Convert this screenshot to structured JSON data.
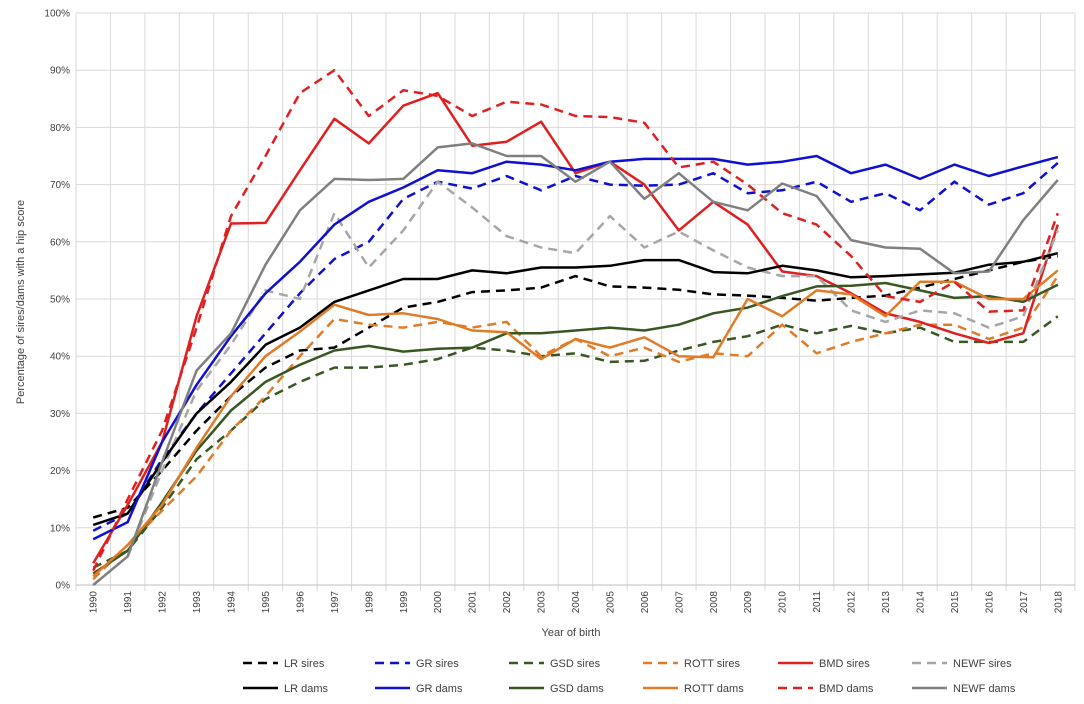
{
  "chart_data": {
    "type": "line",
    "title": "",
    "xlabel": "Year of birth",
    "ylabel": "Percentage of sires/dams with a hip score",
    "ylim": [
      0,
      100
    ],
    "y_ticks": [
      "0%",
      "10%",
      "20%",
      "30%",
      "40%",
      "50%",
      "60%",
      "70%",
      "80%",
      "90%",
      "100%"
    ],
    "x": [
      "1990",
      "1991",
      "1992",
      "1993",
      "1994",
      "1995",
      "1996",
      "1997",
      "1998",
      "1999",
      "2000",
      "2001",
      "2002",
      "2003",
      "2004",
      "2005",
      "2006",
      "2007",
      "2008",
      "2009",
      "2010",
      "2011",
      "2012",
      "2013",
      "2014",
      "2015",
      "2016",
      "2017",
      "2018"
    ],
    "grid": true,
    "legend_position": "bottom",
    "series": [
      {
        "name": "LR sires",
        "color": "#000000",
        "dash": true,
        "values": [
          11.8,
          13.5,
          20,
          27,
          33,
          38,
          41,
          41.5,
          45,
          48.5,
          49.5,
          51.2,
          51.5,
          52,
          54,
          52.2,
          52,
          51.6,
          50.8,
          50.6,
          50.2,
          49.7,
          50.2,
          50.6,
          52,
          53.5,
          55,
          56.5,
          57.5
        ]
      },
      {
        "name": "GR sires",
        "color": "#1010d0",
        "dash": true,
        "values": [
          9.5,
          12.5,
          22,
          30,
          37,
          44,
          51,
          57,
          60,
          67.5,
          70.5,
          69.3,
          71.5,
          69,
          71.5,
          70,
          69.8,
          70,
          72,
          68.5,
          69,
          70.5,
          67,
          68.5,
          65.5,
          70.5,
          66.5,
          68.5,
          73.8
        ]
      },
      {
        "name": "GSD sires",
        "color": "#385723",
        "dash": true,
        "values": [
          3,
          6,
          13.5,
          22,
          27,
          32.5,
          35.5,
          38,
          38,
          38.5,
          39.5,
          41.5,
          41,
          40,
          40.5,
          39,
          39.2,
          41,
          42.5,
          43.5,
          45.5,
          44,
          45.3,
          44,
          45,
          42.5,
          42.5,
          42.5,
          47
        ]
      },
      {
        "name": "ROTT sires",
        "color": "#e07b28",
        "dash": true,
        "values": [
          1,
          7,
          13,
          19,
          27,
          33,
          40,
          46.5,
          45.5,
          45,
          46,
          45,
          46,
          40,
          43,
          40,
          41.5,
          39,
          40.5,
          40,
          45.5,
          40.5,
          42.5,
          44,
          45.5,
          45.5,
          43,
          45,
          54
        ]
      },
      {
        "name": "BMD sires",
        "color": "#e02020",
        "dash": false,
        "values": [
          3.8,
          14,
          25,
          47,
          63.2,
          63.3,
          72.5,
          81.5,
          77.2,
          83.8,
          86,
          76.8,
          77.5,
          81,
          72,
          74,
          70,
          62,
          67,
          63,
          54.8,
          54,
          51,
          47.5,
          46,
          44,
          42.3,
          44,
          63
        ]
      },
      {
        "name": "NEWF sires",
        "color": "#a6a6a6",
        "dash": true,
        "values": [
          0,
          5,
          20,
          34,
          42,
          51.5,
          50,
          65,
          55.5,
          62,
          70.5,
          66,
          61,
          59,
          58,
          64.5,
          59,
          61.8,
          58.5,
          55.5,
          54,
          54,
          48,
          46,
          48,
          47.5,
          45,
          47,
          62
        ]
      },
      {
        "name": "LR dams",
        "color": "#000000",
        "dash": false,
        "values": [
          10.5,
          12.5,
          21.5,
          30,
          35.5,
          42,
          45,
          49.5,
          51.5,
          53.5,
          53.5,
          55,
          54.5,
          55.5,
          55.5,
          55.8,
          56.8,
          56.8,
          54.7,
          54.5,
          55.8,
          55,
          53.8,
          54,
          54.3,
          54.6,
          56,
          56.5,
          58
        ]
      },
      {
        "name": "GR dams",
        "color": "#1010d0",
        "dash": false,
        "values": [
          8,
          11,
          25,
          35,
          43.5,
          51,
          56.5,
          63,
          67,
          69.5,
          72.5,
          72,
          74,
          73.5,
          72.5,
          74,
          74.5,
          74.5,
          74.5,
          73.5,
          74,
          75,
          72,
          73.5,
          71,
          73.5,
          71.5,
          73.2,
          74.8
        ]
      },
      {
        "name": "GSD dams",
        "color": "#385723",
        "dash": false,
        "values": [
          2,
          6,
          14.5,
          23.5,
          30.5,
          35.5,
          38.5,
          41,
          41.8,
          40.8,
          41.3,
          41.5,
          44,
          44,
          44.5,
          45,
          44.5,
          45.5,
          47.5,
          48.5,
          50.5,
          52.2,
          52.3,
          52.8,
          51.5,
          50.2,
          50.5,
          49.5,
          52.5
        ]
      },
      {
        "name": "ROTT dams",
        "color": "#e07b28",
        "dash": false,
        "values": [
          1.5,
          7,
          14,
          24,
          33,
          40,
          44.3,
          49,
          47.2,
          47.5,
          46.5,
          44.5,
          44.2,
          39.5,
          43,
          41.5,
          43.3,
          40,
          39.8,
          50,
          47,
          51.5,
          50.8,
          47,
          53,
          53,
          50,
          50,
          55
        ]
      },
      {
        "name": "BMD dams",
        "color": "#e02020",
        "dash": true,
        "values": [
          2.5,
          15,
          27,
          45,
          64.5,
          75,
          86,
          90,
          82,
          86.5,
          85.5,
          82,
          84.5,
          84,
          82,
          81.8,
          80.8,
          73,
          74,
          70,
          65,
          63,
          57.5,
          50.5,
          49.5,
          53,
          47.8,
          48,
          65
        ]
      },
      {
        "name": "NEWF dams",
        "color": "#808080",
        "dash": false,
        "values": [
          0,
          5,
          21.5,
          37.5,
          44,
          56,
          65.5,
          71,
          70.8,
          71,
          76.5,
          77.2,
          75,
          75,
          70.5,
          74,
          67.5,
          72,
          67,
          65.5,
          70.2,
          68,
          60.3,
          59,
          58.8,
          54.5,
          54.8,
          63.8,
          70.8
        ]
      }
    ]
  }
}
